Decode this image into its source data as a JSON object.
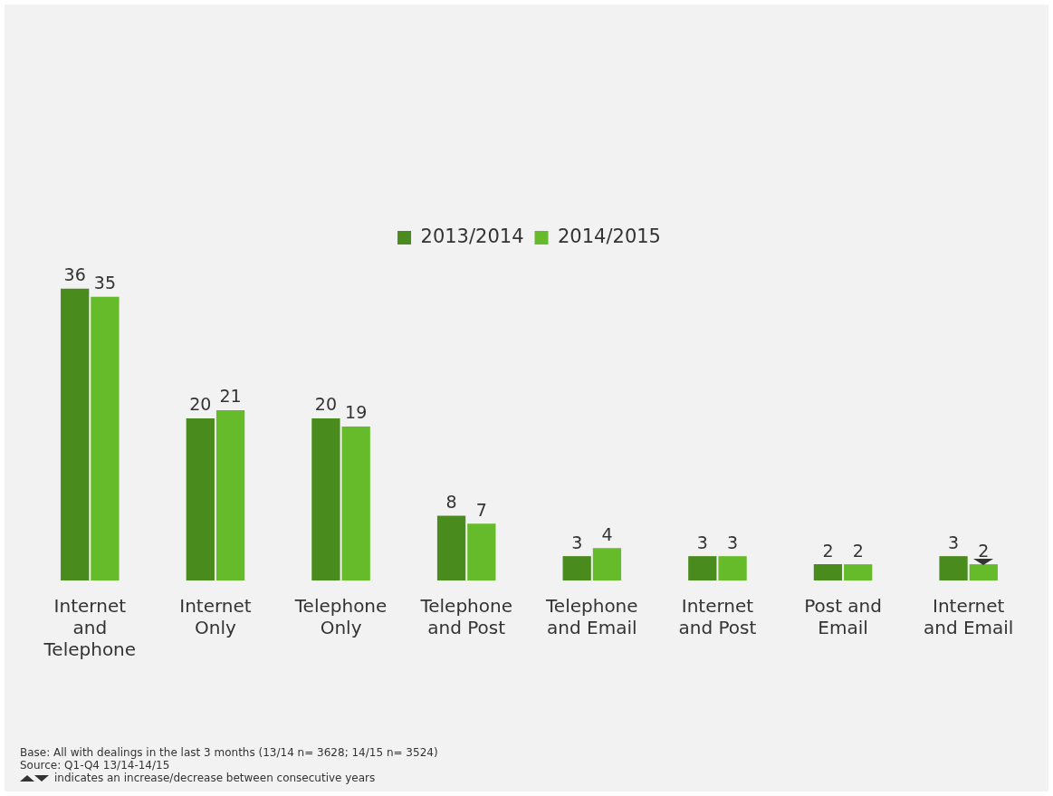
{
  "chart_data": {
    "type": "bar",
    "categories": [
      "Internet and Telephone",
      "Internet Only",
      "Telephone Only",
      "Telephone and Post",
      "Telephone and Email",
      "Internet and Post",
      "Post and Email",
      "Internet and Email"
    ],
    "series": [
      {
        "name": "2013/2014",
        "color": "#4a8b1e",
        "values": [
          36,
          20,
          20,
          8,
          3,
          3,
          2,
          3
        ]
      },
      {
        "name": "2014/2015",
        "color": "#66bb2a",
        "values": [
          35,
          21,
          19,
          7,
          4,
          3,
          2,
          2
        ]
      }
    ],
    "data_labels": true,
    "legend": "top",
    "grid": false,
    "annotations": [
      "Base: All with dealings in the last 3 months (13/14 n= 3628; 14/15 n= 3524)",
      "Source: Q1-Q4 13/14-14/15",
      "indicates an increase/decrease between consecutive years"
    ]
  }
}
